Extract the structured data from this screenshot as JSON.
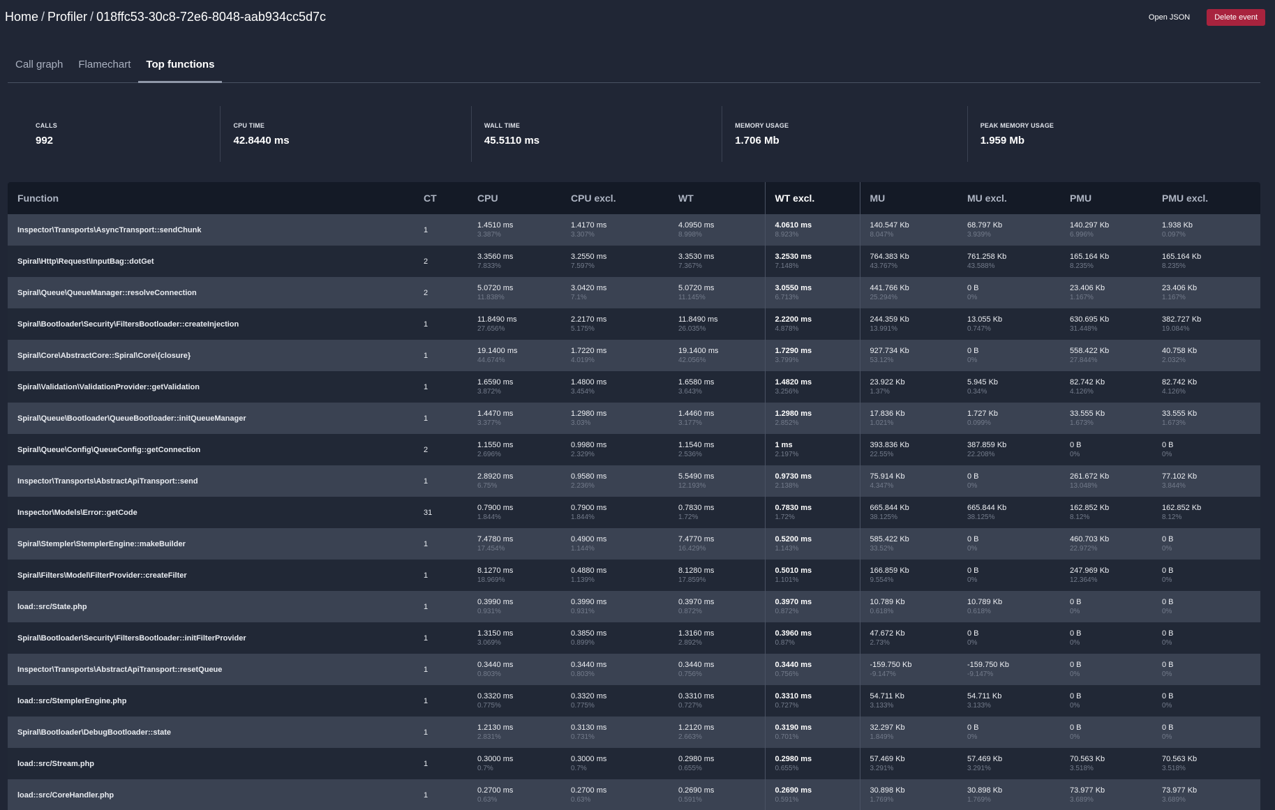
{
  "breadcrumb": [
    "Home",
    "Profiler",
    "018ffc53-30c8-72e6-8048-aab934cc5d7c"
  ],
  "actions": {
    "open_json": "Open JSON",
    "delete_event": "Delete event"
  },
  "tabs": [
    {
      "label": "Call graph",
      "active": false
    },
    {
      "label": "Flamechart",
      "active": false
    },
    {
      "label": "Top functions",
      "active": true
    }
  ],
  "stats": [
    {
      "label": "CALLS",
      "value": "992"
    },
    {
      "label": "CPU TIME",
      "value": "42.8440 ms"
    },
    {
      "label": "WALL TIME",
      "value": "45.5110 ms"
    },
    {
      "label": "MEMORY USAGE",
      "value": "1.706 Mb"
    },
    {
      "label": "PEAK MEMORY USAGE",
      "value": "1.959 Mb"
    }
  ],
  "table": {
    "sorted_column": "WT excl.",
    "columns": [
      "Function",
      "CT",
      "CPU",
      "CPU excl.",
      "WT",
      "WT excl.",
      "MU",
      "MU excl.",
      "PMU",
      "PMU excl."
    ],
    "rows": [
      [
        "Inspector\\Transports\\AsyncTransport::sendChunk",
        "1",
        [
          "1.4510 ms",
          "3.387%"
        ],
        [
          "1.4170 ms",
          "3.307%"
        ],
        [
          "4.0950 ms",
          "8.998%"
        ],
        [
          "4.0610 ms",
          "8.923%"
        ],
        [
          "140.547 Kb",
          "8.047%"
        ],
        [
          "68.797 Kb",
          "3.939%"
        ],
        [
          "140.297 Kb",
          "6.996%"
        ],
        [
          "1.938 Kb",
          "0.097%"
        ]
      ],
      [
        "Spiral\\Http\\Request\\InputBag::dotGet",
        "2",
        [
          "3.3560 ms",
          "7.833%"
        ],
        [
          "3.2550 ms",
          "7.597%"
        ],
        [
          "3.3530 ms",
          "7.367%"
        ],
        [
          "3.2530 ms",
          "7.148%"
        ],
        [
          "764.383 Kb",
          "43.767%"
        ],
        [
          "761.258 Kb",
          "43.588%"
        ],
        [
          "165.164 Kb",
          "8.235%"
        ],
        [
          "165.164 Kb",
          "8.235%"
        ]
      ],
      [
        "Spiral\\Queue\\QueueManager::resolveConnection",
        "2",
        [
          "5.0720 ms",
          "11.838%"
        ],
        [
          "3.0420 ms",
          "7.1%"
        ],
        [
          "5.0720 ms",
          "11.145%"
        ],
        [
          "3.0550 ms",
          "6.713%"
        ],
        [
          "441.766 Kb",
          "25.294%"
        ],
        [
          "0 B",
          "0%"
        ],
        [
          "23.406 Kb",
          "1.167%"
        ],
        [
          "23.406 Kb",
          "1.167%"
        ]
      ],
      [
        "Spiral\\Bootloader\\Security\\FiltersBootloader::createInjection",
        "1",
        [
          "11.8490 ms",
          "27.656%"
        ],
        [
          "2.2170 ms",
          "5.175%"
        ],
        [
          "11.8490 ms",
          "26.035%"
        ],
        [
          "2.2200 ms",
          "4.878%"
        ],
        [
          "244.359 Kb",
          "13.991%"
        ],
        [
          "13.055 Kb",
          "0.747%"
        ],
        [
          "630.695 Kb",
          "31.448%"
        ],
        [
          "382.727 Kb",
          "19.084%"
        ]
      ],
      [
        "Spiral\\Core\\AbstractCore::Spiral\\Core\\{closure}",
        "1",
        [
          "19.1400 ms",
          "44.674%"
        ],
        [
          "1.7220 ms",
          "4.019%"
        ],
        [
          "19.1400 ms",
          "42.056%"
        ],
        [
          "1.7290 ms",
          "3.799%"
        ],
        [
          "927.734 Kb",
          "53.12%"
        ],
        [
          "0 B",
          "0%"
        ],
        [
          "558.422 Kb",
          "27.844%"
        ],
        [
          "40.758 Kb",
          "2.032%"
        ]
      ],
      [
        "Spiral\\Validation\\ValidationProvider::getValidation",
        "1",
        [
          "1.6590 ms",
          "3.872%"
        ],
        [
          "1.4800 ms",
          "3.454%"
        ],
        [
          "1.6580 ms",
          "3.643%"
        ],
        [
          "1.4820 ms",
          "3.256%"
        ],
        [
          "23.922 Kb",
          "1.37%"
        ],
        [
          "5.945 Kb",
          "0.34%"
        ],
        [
          "82.742 Kb",
          "4.126%"
        ],
        [
          "82.742 Kb",
          "4.126%"
        ]
      ],
      [
        "Spiral\\Queue\\Bootloader\\QueueBootloader::initQueueManager",
        "1",
        [
          "1.4470 ms",
          "3.377%"
        ],
        [
          "1.2980 ms",
          "3.03%"
        ],
        [
          "1.4460 ms",
          "3.177%"
        ],
        [
          "1.2980 ms",
          "2.852%"
        ],
        [
          "17.836 Kb",
          "1.021%"
        ],
        [
          "1.727 Kb",
          "0.099%"
        ],
        [
          "33.555 Kb",
          "1.673%"
        ],
        [
          "33.555 Kb",
          "1.673%"
        ]
      ],
      [
        "Spiral\\Queue\\Config\\QueueConfig::getConnection",
        "2",
        [
          "1.1550 ms",
          "2.696%"
        ],
        [
          "0.9980 ms",
          "2.329%"
        ],
        [
          "1.1540 ms",
          "2.536%"
        ],
        [
          "1 ms",
          "2.197%"
        ],
        [
          "393.836 Kb",
          "22.55%"
        ],
        [
          "387.859 Kb",
          "22.208%"
        ],
        [
          "0 B",
          "0%"
        ],
        [
          "0 B",
          "0%"
        ]
      ],
      [
        "Inspector\\Transports\\AbstractApiTransport::send",
        "1",
        [
          "2.8920 ms",
          "6.75%"
        ],
        [
          "0.9580 ms",
          "2.236%"
        ],
        [
          "5.5490 ms",
          "12.193%"
        ],
        [
          "0.9730 ms",
          "2.138%"
        ],
        [
          "75.914 Kb",
          "4.347%"
        ],
        [
          "0 B",
          "0%"
        ],
        [
          "261.672 Kb",
          "13.048%"
        ],
        [
          "77.102 Kb",
          "3.844%"
        ]
      ],
      [
        "Inspector\\Models\\Error::getCode",
        "31",
        [
          "0.7900 ms",
          "1.844%"
        ],
        [
          "0.7900 ms",
          "1.844%"
        ],
        [
          "0.7830 ms",
          "1.72%"
        ],
        [
          "0.7830 ms",
          "1.72%"
        ],
        [
          "665.844 Kb",
          "38.125%"
        ],
        [
          "665.844 Kb",
          "38.125%"
        ],
        [
          "162.852 Kb",
          "8.12%"
        ],
        [
          "162.852 Kb",
          "8.12%"
        ]
      ],
      [
        "Spiral\\Stempler\\StemplerEngine::makeBuilder",
        "1",
        [
          "7.4780 ms",
          "17.454%"
        ],
        [
          "0.4900 ms",
          "1.144%"
        ],
        [
          "7.4770 ms",
          "16.429%"
        ],
        [
          "0.5200 ms",
          "1.143%"
        ],
        [
          "585.422 Kb",
          "33.52%"
        ],
        [
          "0 B",
          "0%"
        ],
        [
          "460.703 Kb",
          "22.972%"
        ],
        [
          "0 B",
          "0%"
        ]
      ],
      [
        "Spiral\\Filters\\Model\\FilterProvider::createFilter",
        "1",
        [
          "8.1270 ms",
          "18.969%"
        ],
        [
          "0.4880 ms",
          "1.139%"
        ],
        [
          "8.1280 ms",
          "17.859%"
        ],
        [
          "0.5010 ms",
          "1.101%"
        ],
        [
          "166.859 Kb",
          "9.554%"
        ],
        [
          "0 B",
          "0%"
        ],
        [
          "247.969 Kb",
          "12.364%"
        ],
        [
          "0 B",
          "0%"
        ]
      ],
      [
        "load::src/State.php",
        "1",
        [
          "0.3990 ms",
          "0.931%"
        ],
        [
          "0.3990 ms",
          "0.931%"
        ],
        [
          "0.3970 ms",
          "0.872%"
        ],
        [
          "0.3970 ms",
          "0.872%"
        ],
        [
          "10.789 Kb",
          "0.618%"
        ],
        [
          "10.789 Kb",
          "0.618%"
        ],
        [
          "0 B",
          "0%"
        ],
        [
          "0 B",
          "0%"
        ]
      ],
      [
        "Spiral\\Bootloader\\Security\\FiltersBootloader::initFilterProvider",
        "1",
        [
          "1.3150 ms",
          "3.069%"
        ],
        [
          "0.3850 ms",
          "0.899%"
        ],
        [
          "1.3160 ms",
          "2.892%"
        ],
        [
          "0.3960 ms",
          "0.87%"
        ],
        [
          "47.672 Kb",
          "2.73%"
        ],
        [
          "0 B",
          "0%"
        ],
        [
          "0 B",
          "0%"
        ],
        [
          "0 B",
          "0%"
        ]
      ],
      [
        "Inspector\\Transports\\AbstractApiTransport::resetQueue",
        "1",
        [
          "0.3440 ms",
          "0.803%"
        ],
        [
          "0.3440 ms",
          "0.803%"
        ],
        [
          "0.3440 ms",
          "0.756%"
        ],
        [
          "0.3440 ms",
          "0.756%"
        ],
        [
          "-159.750 Kb",
          "-9.147%"
        ],
        [
          "-159.750 Kb",
          "-9.147%"
        ],
        [
          "0 B",
          "0%"
        ],
        [
          "0 B",
          "0%"
        ]
      ],
      [
        "load::src/StemplerEngine.php",
        "1",
        [
          "0.3320 ms",
          "0.775%"
        ],
        [
          "0.3320 ms",
          "0.775%"
        ],
        [
          "0.3310 ms",
          "0.727%"
        ],
        [
          "0.3310 ms",
          "0.727%"
        ],
        [
          "54.711 Kb",
          "3.133%"
        ],
        [
          "54.711 Kb",
          "3.133%"
        ],
        [
          "0 B",
          "0%"
        ],
        [
          "0 B",
          "0%"
        ]
      ],
      [
        "Spiral\\Bootloader\\DebugBootloader::state",
        "1",
        [
          "1.2130 ms",
          "2.831%"
        ],
        [
          "0.3130 ms",
          "0.731%"
        ],
        [
          "1.2120 ms",
          "2.663%"
        ],
        [
          "0.3190 ms",
          "0.701%"
        ],
        [
          "32.297 Kb",
          "1.849%"
        ],
        [
          "0 B",
          "0%"
        ],
        [
          "0 B",
          "0%"
        ],
        [
          "0 B",
          "0%"
        ]
      ],
      [
        "load::src/Stream.php",
        "1",
        [
          "0.3000 ms",
          "0.7%"
        ],
        [
          "0.3000 ms",
          "0.7%"
        ],
        [
          "0.2980 ms",
          "0.655%"
        ],
        [
          "0.2980 ms",
          "0.655%"
        ],
        [
          "57.469 Kb",
          "3.291%"
        ],
        [
          "57.469 Kb",
          "3.291%"
        ],
        [
          "70.563 Kb",
          "3.518%"
        ],
        [
          "70.563 Kb",
          "3.518%"
        ]
      ],
      [
        "load::src/CoreHandler.php",
        "1",
        [
          "0.2700 ms",
          "0.63%"
        ],
        [
          "0.2700 ms",
          "0.63%"
        ],
        [
          "0.2690 ms",
          "0.591%"
        ],
        [
          "0.2690 ms",
          "0.591%"
        ],
        [
          "30.898 Kb",
          "1.769%"
        ],
        [
          "30.898 Kb",
          "1.769%"
        ],
        [
          "73.977 Kb",
          "3.689%"
        ],
        [
          "73.977 Kb",
          "3.689%"
        ]
      ]
    ]
  }
}
